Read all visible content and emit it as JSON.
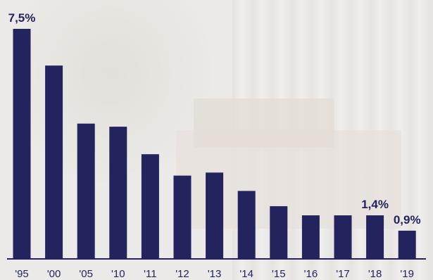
{
  "chart_data": {
    "type": "bar",
    "title": "",
    "xlabel": "",
    "ylabel": "",
    "categories": [
      "'95",
      "'00",
      "'05",
      "'10",
      "'11",
      "'12",
      "'13",
      "'14",
      "'15",
      "'16",
      "'17",
      "'18",
      "'19"
    ],
    "values": [
      7.5,
      6.3,
      4.4,
      4.3,
      3.4,
      2.7,
      2.8,
      2.2,
      1.7,
      1.4,
      1.4,
      1.4,
      0.9
    ],
    "data_labels": [
      {
        "index": 0,
        "text": "7,5%"
      },
      {
        "index": 11,
        "text": "1,4%"
      },
      {
        "index": 12,
        "text": "0,9%"
      }
    ],
    "ylim": [
      0,
      7.5
    ],
    "grid": false,
    "legend": "none",
    "colors": {
      "bar": "#23235e",
      "background": "#eceae8"
    }
  }
}
